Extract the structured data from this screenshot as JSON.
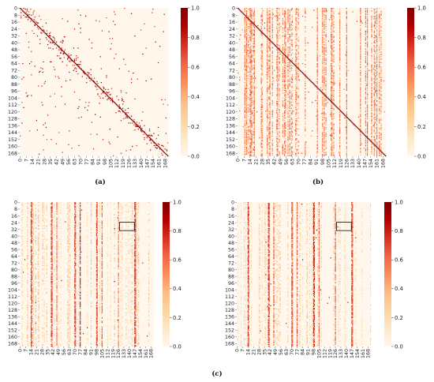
{
  "chart_data": [
    {
      "type": "heatmap",
      "panel": "a",
      "caption": "(a)",
      "matrix_size": 172,
      "background_value": 0.0,
      "value_range": [
        0.0,
        1.0
      ],
      "pattern": "diagonal-sparse",
      "diagonal": "strong",
      "y_ticks": [
        "0",
        "8",
        "16",
        "24",
        "32",
        "40",
        "48",
        "56",
        "64",
        "72",
        "80",
        "88",
        "96",
        "104",
        "112",
        "120",
        "128",
        "136",
        "144",
        "152",
        "160",
        "168"
      ],
      "x_ticks": [
        "0",
        "7",
        "14",
        "21",
        "28",
        "35",
        "42",
        "49",
        "56",
        "63",
        "70",
        "77",
        "84",
        "91",
        "98",
        "105",
        "112",
        "119",
        "126",
        "133",
        "140",
        "147",
        "154",
        "161",
        "168"
      ],
      "colorbar_ticks": [
        "0.0",
        "0.2",
        "0.4",
        "0.6",
        "0.8",
        "1.0"
      ],
      "colormap": "OrRd",
      "seed": 11
    },
    {
      "type": "heatmap",
      "panel": "b",
      "caption": "(b)",
      "matrix_size": 172,
      "background_value": 0.0,
      "value_range": [
        0.0,
        1.0
      ],
      "pattern": "diagonal-plus-columns",
      "diagonal": "strong",
      "y_ticks": [
        "0",
        "8",
        "16",
        "24",
        "32",
        "40",
        "48",
        "56",
        "64",
        "72",
        "80",
        "88",
        "96",
        "104",
        "112",
        "120",
        "128",
        "136",
        "144",
        "152",
        "160",
        "168"
      ],
      "x_ticks": [
        "0",
        "7",
        "14",
        "21",
        "28",
        "35",
        "42",
        "49",
        "56",
        "63",
        "70",
        "77",
        "84",
        "91",
        "98",
        "105",
        "112",
        "119",
        "126",
        "133",
        "140",
        "147",
        "154",
        "161",
        "168"
      ],
      "colorbar_ticks": [
        "0.0",
        "0.2",
        "0.4",
        "0.6",
        "0.8",
        "1.0"
      ],
      "colormap": "OrRd",
      "seed": 23
    },
    {
      "type": "heatmap",
      "panel": "c-left",
      "matrix_size": 172,
      "background_value": 0.0,
      "value_range": [
        0.0,
        1.0
      ],
      "pattern": "columns",
      "diagonal": "none",
      "highlight_box": {
        "rows": [
          24,
          34
        ],
        "cols": [
          128,
          147
        ]
      },
      "y_ticks": [
        "0",
        "8",
        "16",
        "24",
        "32",
        "40",
        "48",
        "56",
        "64",
        "72",
        "80",
        "88",
        "96",
        "104",
        "112",
        "120",
        "128",
        "136",
        "144",
        "152",
        "160",
        "168"
      ],
      "x_ticks": [
        "0",
        "7",
        "14",
        "21",
        "28",
        "35",
        "42",
        "49",
        "56",
        "63",
        "70",
        "77",
        "84",
        "91",
        "98",
        "105",
        "112",
        "119",
        "126",
        "133",
        "140",
        "147",
        "154",
        "161",
        "168"
      ],
      "colorbar_ticks": [
        "0.0",
        "0.2",
        "0.4",
        "0.6",
        "0.8",
        "1.0"
      ],
      "colormap": "OrRd",
      "seed": 37
    },
    {
      "type": "heatmap",
      "panel": "c-right",
      "caption": "(c)",
      "matrix_size": 172,
      "background_value": 0.0,
      "value_range": [
        0.0,
        1.0
      ],
      "pattern": "columns",
      "diagonal": "none",
      "highlight_box": {
        "rows": [
          24,
          34
        ],
        "cols": [
          128,
          147
        ]
      },
      "y_ticks": [
        "0",
        "8",
        "16",
        "24",
        "32",
        "40",
        "48",
        "56",
        "64",
        "72",
        "80",
        "88",
        "96",
        "104",
        "112",
        "120",
        "128",
        "136",
        "144",
        "152",
        "160",
        "168"
      ],
      "x_ticks": [
        "0",
        "7",
        "14",
        "21",
        "28",
        "35",
        "42",
        "49",
        "56",
        "63",
        "70",
        "77",
        "84",
        "91",
        "98",
        "105",
        "112",
        "119",
        "126",
        "133",
        "140",
        "147",
        "154",
        "161",
        "168"
      ],
      "colorbar_ticks": [
        "0.0",
        "0.2",
        "0.4",
        "0.6",
        "0.8",
        "1.0"
      ],
      "colormap": "OrRd",
      "seed": 53
    }
  ],
  "captions": {
    "a": "(a)",
    "b": "(b)",
    "c": "(c)"
  },
  "colors": {
    "colormap_stops": [
      "#fff7ec",
      "#fee8c8",
      "#fdd49e",
      "#fdbb84",
      "#fc8d59",
      "#ef6548",
      "#d7301f",
      "#b30000",
      "#7f0000"
    ]
  }
}
